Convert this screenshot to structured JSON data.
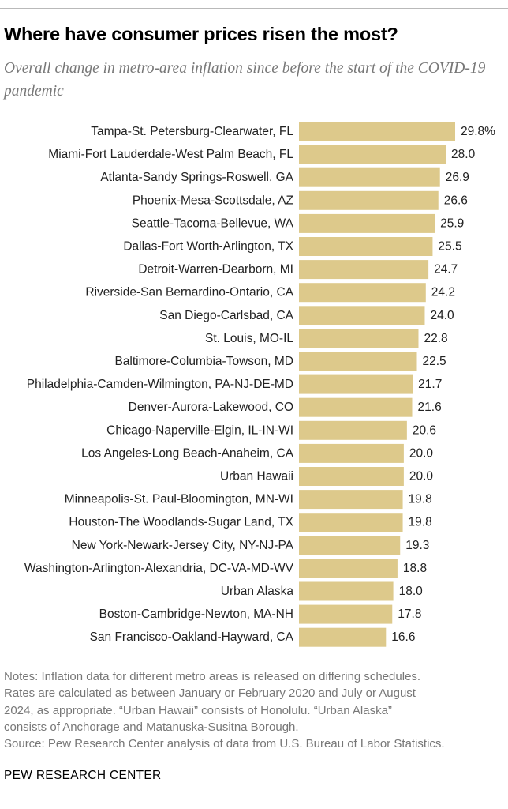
{
  "header": {
    "title": "Where have consumer prices risen the most?",
    "subtitle": "Overall change in metro-area inflation since before the start of the COVID-19 pandemic"
  },
  "colors": {
    "bar": "#ddc98b",
    "label": "#222222"
  },
  "chart_data": {
    "type": "bar",
    "orientation": "horizontal",
    "categories": [
      "Tampa-St. Petersburg-Clearwater, FL",
      "Miami-Fort Lauderdale-West Palm Beach, FL",
      "Atlanta-Sandy Springs-Roswell, GA",
      "Phoenix-Mesa-Scottsdale, AZ",
      "Seattle-Tacoma-Bellevue, WA",
      "Dallas-Fort Worth-Arlington, TX",
      "Detroit-Warren-Dearborn, MI",
      "Riverside-San Bernardino-Ontario, CA",
      "San Diego-Carlsbad, CA",
      "St. Louis, MO-IL",
      "Baltimore-Columbia-Towson, MD",
      "Philadelphia-Camden-Wilmington, PA-NJ-DE-MD",
      "Denver-Aurora-Lakewood, CO",
      "Chicago-Naperville-Elgin, IL-IN-WI",
      "Los Angeles-Long Beach-Anaheim, CA",
      "Urban Hawaii",
      "Minneapolis-St. Paul-Bloomington, MN-WI",
      "Houston-The Woodlands-Sugar Land, TX",
      "New York-Newark-Jersey City, NY-NJ-PA",
      "Washington-Arlington-Alexandria, DC-VA-MD-WV",
      "Urban Alaska",
      "Boston-Cambridge-Newton, MA-NH",
      "San Francisco-Oakland-Hayward, CA"
    ],
    "values": [
      29.8,
      28.0,
      26.9,
      26.6,
      25.9,
      25.5,
      24.7,
      24.2,
      24.0,
      22.8,
      22.5,
      21.7,
      21.6,
      20.6,
      20.0,
      20.0,
      19.8,
      19.8,
      19.3,
      18.8,
      18.0,
      17.8,
      16.6
    ],
    "value_labels": [
      "29.8%",
      "28.0",
      "26.9",
      "26.6",
      "25.9",
      "25.5",
      "24.7",
      "24.2",
      "24.0",
      "22.8",
      "22.5",
      "21.7",
      "21.6",
      "20.6",
      "20.0",
      "20.0",
      "19.8",
      "19.8",
      "19.3",
      "18.8",
      "18.0",
      "17.8",
      "16.6"
    ],
    "xlim": [
      0,
      29.8
    ],
    "grid": false,
    "legend": "none"
  },
  "notes": {
    "lines": [
      "Notes: Inflation data for different metro areas is released on differing schedules.",
      "Rates are calculated as between January or February 2020 and July or August",
      "2024, as appropriate. “Urban Hawaii” consists of Honolulu. “Urban Alaska”",
      "consists of Anchorage and Matanuska-Susitna Borough."
    ],
    "source": "Source: Pew Research Center analysis of data from U.S. Bureau of Labor Statistics."
  },
  "footer": {
    "brand": "PEW RESEARCH CENTER"
  }
}
